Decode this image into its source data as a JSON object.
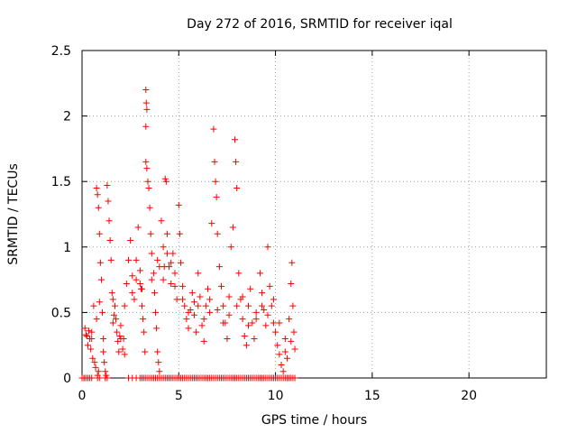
{
  "chart_data": {
    "type": "scatter",
    "title": "Day 272 of 2016, SRMTID for receiver iqal",
    "xlabel": "GPS time / hours",
    "ylabel": "SRMTID / TECUs",
    "xlim": [
      0,
      24
    ],
    "ylim": [
      0,
      2.5
    ],
    "xticks": [
      0,
      5,
      10,
      15,
      20
    ],
    "xtick_labels": [
      "0",
      "5",
      "10",
      "15",
      "20"
    ],
    "yticks": [
      0,
      0.5,
      1,
      1.5,
      2,
      2.5
    ],
    "ytick_labels": [
      "0",
      "0.5",
      "1",
      "1.5",
      "2",
      "2.5"
    ],
    "grid": true,
    "marker": "+",
    "series": [
      {
        "name": "SRMTID",
        "color": "#ff0000",
        "points": [
          [
            0.1,
            0.0
          ],
          [
            0.15,
            0.38
          ],
          [
            0.25,
            0.32
          ],
          [
            0.3,
            0.25
          ],
          [
            0.35,
            0.36
          ],
          [
            0.4,
            0.3
          ],
          [
            0.45,
            0.22
          ],
          [
            0.5,
            0.35
          ],
          [
            0.55,
            0.15
          ],
          [
            0.6,
            0.55
          ],
          [
            0.65,
            0.12
          ],
          [
            0.7,
            0.08
          ],
          [
            0.75,
            0.45
          ],
          [
            0.8,
            0.02
          ],
          [
            0.85,
            0.05
          ],
          [
            0.9,
            0.58
          ],
          [
            0.95,
            0.88
          ],
          [
            0.75,
            1.45
          ],
          [
            0.8,
            1.4
          ],
          [
            0.85,
            1.3
          ],
          [
            0.9,
            1.1
          ],
          [
            1.0,
            0.75
          ],
          [
            1.05,
            0.5
          ],
          [
            1.1,
            0.3
          ],
          [
            1.15,
            0.12
          ],
          [
            1.2,
            0.05
          ],
          [
            1.25,
            0.02
          ],
          [
            1.3,
            1.47
          ],
          [
            1.35,
            1.35
          ],
          [
            1.4,
            1.2
          ],
          [
            1.45,
            1.05
          ],
          [
            1.5,
            0.9
          ],
          [
            1.55,
            0.65
          ],
          [
            1.6,
            0.6
          ],
          [
            1.65,
            0.48
          ],
          [
            1.7,
            0.55
          ],
          [
            1.75,
            0.45
          ],
          [
            1.8,
            0.35
          ],
          [
            1.85,
            0.28
          ],
          [
            1.9,
            0.2
          ],
          [
            1.95,
            0.32
          ],
          [
            2.0,
            0.4
          ],
          [
            2.1,
            0.22
          ],
          [
            2.15,
            0.3
          ],
          [
            2.2,
            0.55
          ],
          [
            2.3,
            0.72
          ],
          [
            2.4,
            0.9
          ],
          [
            2.5,
            1.05
          ],
          [
            2.6,
            0.78
          ],
          [
            2.7,
            0.6
          ],
          [
            2.8,
            0.9
          ],
          [
            2.9,
            1.15
          ],
          [
            3.0,
            0.82
          ],
          [
            3.05,
            0.68
          ],
          [
            3.1,
            0.55
          ],
          [
            3.15,
            0.45
          ],
          [
            3.2,
            0.35
          ],
          [
            3.25,
            0.2
          ],
          [
            3.3,
            2.2
          ],
          [
            3.32,
            2.1
          ],
          [
            3.35,
            2.05
          ],
          [
            3.3,
            1.92
          ],
          [
            3.3,
            1.65
          ],
          [
            3.35,
            1.6
          ],
          [
            3.4,
            1.5
          ],
          [
            3.45,
            1.45
          ],
          [
            3.5,
            1.3
          ],
          [
            3.55,
            1.1
          ],
          [
            3.6,
            0.95
          ],
          [
            3.7,
            0.8
          ],
          [
            3.75,
            0.65
          ],
          [
            3.8,
            0.5
          ],
          [
            3.85,
            0.38
          ],
          [
            3.9,
            0.2
          ],
          [
            3.95,
            0.12
          ],
          [
            4.0,
            0.05
          ],
          [
            4.1,
            1.2
          ],
          [
            4.2,
            1.0
          ],
          [
            4.25,
            0.85
          ],
          [
            4.3,
            1.52
          ],
          [
            4.35,
            1.5
          ],
          [
            4.4,
            1.1
          ],
          [
            4.5,
            0.85
          ],
          [
            4.6,
            0.72
          ],
          [
            4.7,
            0.95
          ],
          [
            4.8,
            0.8
          ],
          [
            4.9,
            0.6
          ],
          [
            5.0,
            1.32
          ],
          [
            5.05,
            1.1
          ],
          [
            5.1,
            0.88
          ],
          [
            5.2,
            0.7
          ],
          [
            5.3,
            0.55
          ],
          [
            5.4,
            0.45
          ],
          [
            5.5,
            0.38
          ],
          [
            5.6,
            0.52
          ],
          [
            5.7,
            0.65
          ],
          [
            5.8,
            0.48
          ],
          [
            5.9,
            0.35
          ],
          [
            6.0,
            0.8
          ],
          [
            6.1,
            0.62
          ],
          [
            6.2,
            0.4
          ],
          [
            6.3,
            0.28
          ],
          [
            6.4,
            0.55
          ],
          [
            6.5,
            0.68
          ],
          [
            6.6,
            0.5
          ],
          [
            6.7,
            1.18
          ],
          [
            6.8,
            1.9
          ],
          [
            6.85,
            1.65
          ],
          [
            6.9,
            1.5
          ],
          [
            6.95,
            1.38
          ],
          [
            7.0,
            1.1
          ],
          [
            7.1,
            0.85
          ],
          [
            7.2,
            0.7
          ],
          [
            7.3,
            0.55
          ],
          [
            7.4,
            0.42
          ],
          [
            7.5,
            0.3
          ],
          [
            7.6,
            0.62
          ],
          [
            7.7,
            1.0
          ],
          [
            7.8,
            1.15
          ],
          [
            7.9,
            1.82
          ],
          [
            7.95,
            1.65
          ],
          [
            8.0,
            1.45
          ],
          [
            8.1,
            0.8
          ],
          [
            8.2,
            0.6
          ],
          [
            8.3,
            0.45
          ],
          [
            8.4,
            0.32
          ],
          [
            8.5,
            0.25
          ],
          [
            8.6,
            0.55
          ],
          [
            8.7,
            0.68
          ],
          [
            8.8,
            0.42
          ],
          [
            8.9,
            0.3
          ],
          [
            9.0,
            0.5
          ],
          [
            9.2,
            0.8
          ],
          [
            9.3,
            0.65
          ],
          [
            9.4,
            0.52
          ],
          [
            9.5,
            0.4
          ],
          [
            9.6,
            1.0
          ],
          [
            9.7,
            0.7
          ],
          [
            9.8,
            0.55
          ],
          [
            9.9,
            0.42
          ],
          [
            10.0,
            0.35
          ],
          [
            10.1,
            0.25
          ],
          [
            10.2,
            0.18
          ],
          [
            10.3,
            0.1
          ],
          [
            10.4,
            0.05
          ],
          [
            10.5,
            0.3
          ],
          [
            10.6,
            0.15
          ],
          [
            10.7,
            0.45
          ],
          [
            10.8,
            0.72
          ],
          [
            10.85,
            0.88
          ],
          [
            10.9,
            0.55
          ],
          [
            10.95,
            0.35
          ],
          [
            11.0,
            0.22
          ],
          [
            0.2,
            0.33
          ],
          [
            0.5,
            0.3
          ],
          [
            1.1,
            0.2
          ],
          [
            1.6,
            0.42
          ],
          [
            2.0,
            0.3
          ],
          [
            2.2,
            0.18
          ],
          [
            2.6,
            0.65
          ],
          [
            2.8,
            0.75
          ],
          [
            3.0,
            0.72
          ],
          [
            3.1,
            0.68
          ],
          [
            3.6,
            0.75
          ],
          [
            3.9,
            0.9
          ],
          [
            4.0,
            0.85
          ],
          [
            4.2,
            0.75
          ],
          [
            4.4,
            0.95
          ],
          [
            4.6,
            0.88
          ],
          [
            4.8,
            0.7
          ],
          [
            5.2,
            0.6
          ],
          [
            5.5,
            0.5
          ],
          [
            5.8,
            0.58
          ],
          [
            6.0,
            0.55
          ],
          [
            6.3,
            0.45
          ],
          [
            6.6,
            0.6
          ],
          [
            7.0,
            0.52
          ],
          [
            7.3,
            0.42
          ],
          [
            7.6,
            0.48
          ],
          [
            8.0,
            0.55
          ],
          [
            8.3,
            0.62
          ],
          [
            8.6,
            0.4
          ],
          [
            9.0,
            0.45
          ],
          [
            9.3,
            0.55
          ],
          [
            9.6,
            0.48
          ],
          [
            9.9,
            0.6
          ],
          [
            10.2,
            0.42
          ],
          [
            10.5,
            0.2
          ],
          [
            10.8,
            0.28
          ]
        ]
      }
    ],
    "zero_band_points": [
      0.0,
      0.1,
      0.2,
      0.3,
      0.4,
      0.5,
      0.8,
      0.9,
      1.2,
      1.3,
      2.4,
      2.6,
      2.8,
      3.0,
      3.1,
      3.2,
      3.3,
      3.4,
      3.5,
      3.6,
      3.7,
      3.8,
      3.9,
      4.0,
      4.1,
      4.2,
      4.3,
      4.4,
      4.5,
      4.6,
      4.7,
      4.8,
      4.9,
      5.0,
      5.1,
      5.2,
      5.3,
      5.4,
      5.5,
      5.6,
      5.7,
      5.8,
      5.9,
      6.0,
      6.1,
      6.2,
      6.3,
      6.4,
      6.5,
      6.6,
      6.7,
      6.8,
      6.9,
      7.0,
      7.1,
      7.2,
      7.3,
      7.4,
      7.5,
      7.6,
      7.7,
      7.8,
      7.9,
      8.0,
      8.1,
      8.2,
      8.3,
      8.4,
      8.5,
      8.6,
      8.7,
      8.8,
      8.9,
      9.0,
      9.1,
      9.2,
      9.3,
      9.4,
      9.5,
      9.6,
      9.7,
      9.8,
      9.9,
      10.0,
      10.1,
      10.2,
      10.3,
      10.4,
      10.5,
      10.6,
      10.7,
      10.8,
      10.9,
      11.0
    ]
  }
}
